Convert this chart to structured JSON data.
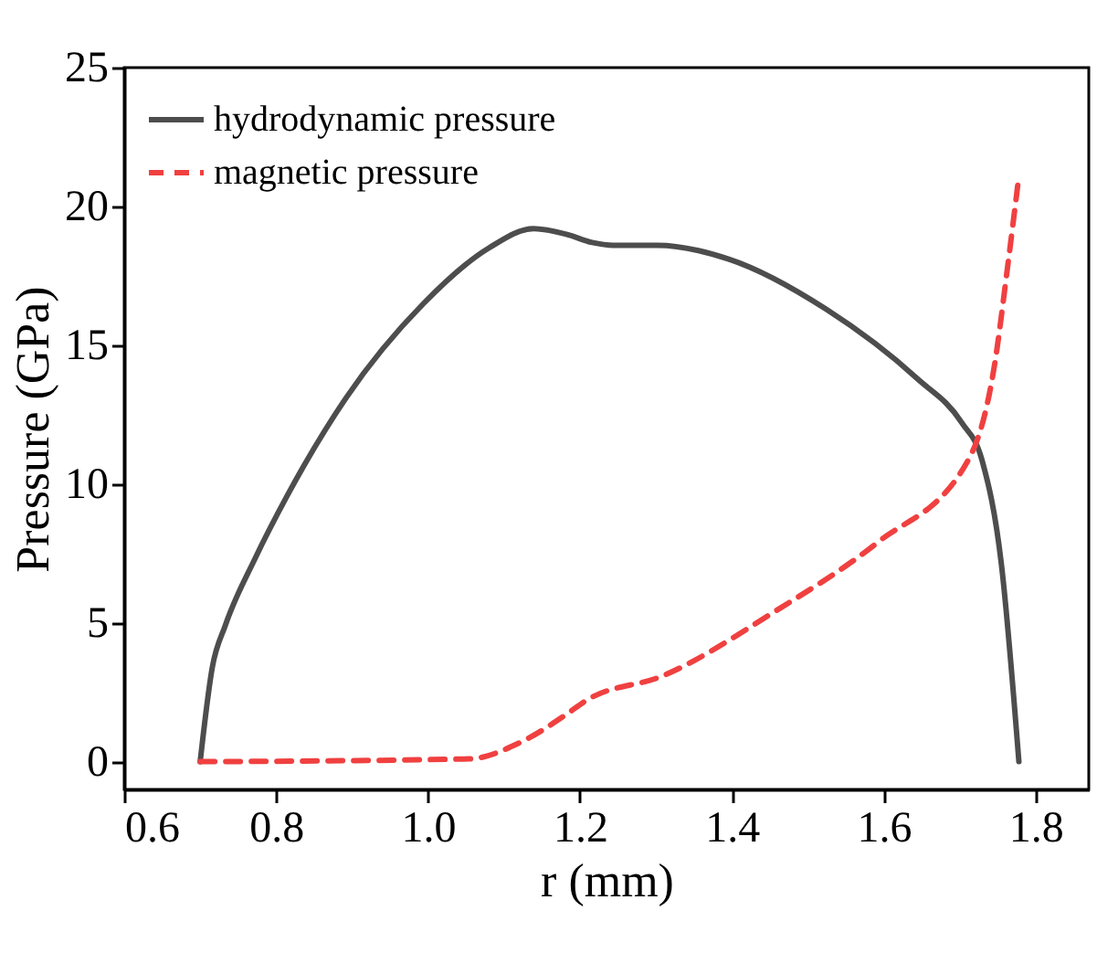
{
  "chart_data": {
    "type": "line",
    "xlabel": "r (mm)",
    "ylabel": "Pressure (GPa)",
    "xlim": [
      0.6,
      1.87
    ],
    "xticks": [
      0.6,
      0.8,
      {
        "value": 1,
        "label": "1.0"
      },
      1.2,
      1.4,
      1.6,
      1.8
    ],
    "ylim": [
      -1,
      25
    ],
    "yticks": [
      0,
      5,
      10,
      15,
      20,
      25
    ],
    "grid": false,
    "legend": "top left",
    "series": [
      {
        "name": "hydrodynamic pressure",
        "color": "#4d4d4d",
        "line_style": "solid",
        "x": [
          0.7,
          0.716,
          0.733,
          0.772,
          0.815,
          0.892,
          0.994,
          1.08,
          1.139,
          1.182,
          1.216,
          1.244,
          1.302,
          1.396,
          1.524,
          1.644,
          1.703,
          1.729,
          1.755,
          1.778
        ],
        "values": [
          0,
          3.4,
          4.9,
          7.3,
          9.6,
          13.1,
          16.5,
          18.5,
          19.2,
          19.0,
          18.7,
          18.6,
          18.6,
          18.1,
          16.3,
          13.8,
          12.2,
          10.9,
          7.1,
          0
        ]
      },
      {
        "name": "magnetic pressure",
        "color": "#f04040",
        "line_style": "dashed",
        "x": [
          0.7,
          1.054,
          1.122,
          1.182,
          1.208,
          1.31,
          1.456,
          1.592,
          1.712,
          1.746,
          1.763,
          1.778
        ],
        "values": [
          0,
          0.1,
          0.7,
          1.7,
          2.2,
          3.1,
          5.4,
          7.9,
          10.9,
          14.3,
          17.8,
          21.1
        ]
      }
    ]
  }
}
